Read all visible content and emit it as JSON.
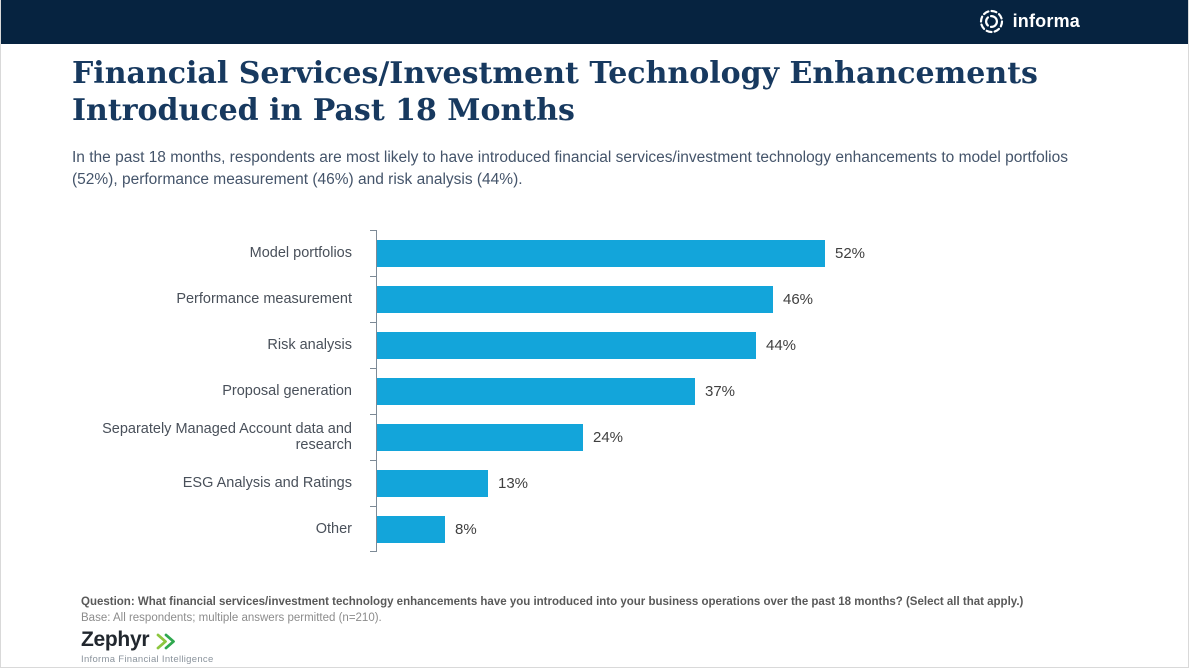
{
  "header": {
    "brand": "informa",
    "background_color": "#062340"
  },
  "page": {
    "title": "Financial Services/Investment Technology Enhancements Introduced in Past 18 Months",
    "subtitle": "In the past 18 months, respondents are most likely to have introduced financial services/investment technology enhancements to model portfolios (52%), performance measurement (46%) and risk analysis (44%)."
  },
  "chart_data": {
    "type": "bar",
    "orientation": "horizontal",
    "categories": [
      "Model portfolios",
      "Performance measurement",
      "Risk analysis",
      "Proposal generation",
      "Separately Managed Account data and research",
      "ESG Analysis and Ratings",
      "Other"
    ],
    "values": [
      52,
      46,
      44,
      37,
      24,
      13,
      8
    ],
    "value_labels": [
      "52%",
      "46%",
      "44%",
      "37%",
      "24%",
      "13%",
      "8%"
    ],
    "bar_color": "#13a5da",
    "xlim": [
      0,
      52
    ],
    "grid": false,
    "legend": "none",
    "data_labels": "outside-end"
  },
  "footnote": {
    "question": "Question: What financial services/investment technology enhancements have you introduced into your business operations over the past 18 months? (Select all that apply.)",
    "base": "Base: All respondents; multiple answers permitted (n=210)."
  },
  "footer": {
    "logo_text": "Zephyr",
    "tagline": "Informa Financial Intelligence",
    "chevron_colors": [
      "#8dc63f",
      "#2fa84f"
    ]
  },
  "colors": {
    "title_text": "#17395f",
    "subtitle_text": "#44546a",
    "bar": "#13a5da",
    "axis": "#7d8a96"
  }
}
